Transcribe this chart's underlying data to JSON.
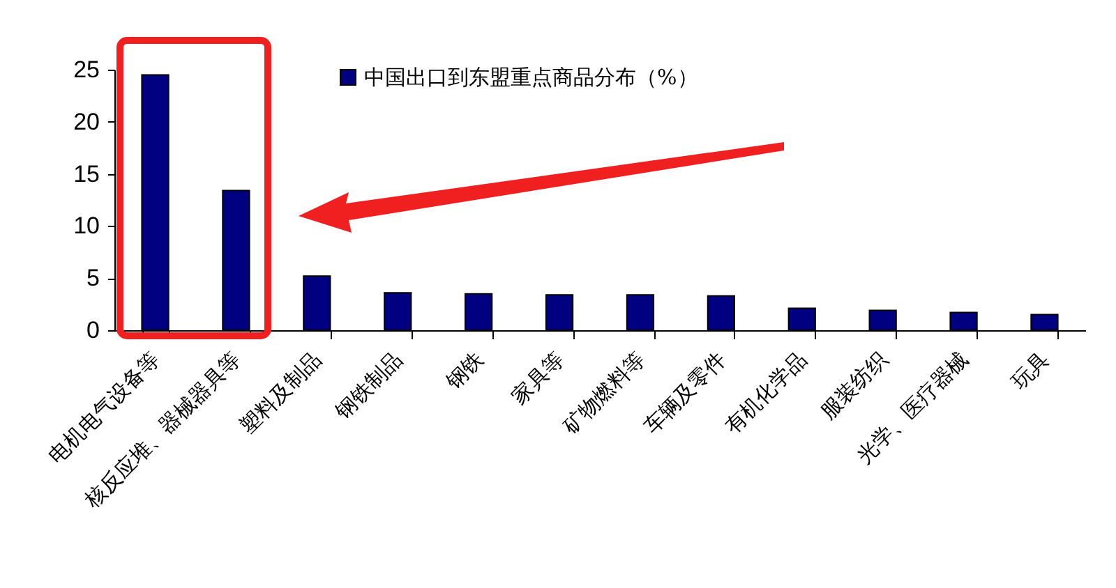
{
  "chart_data": {
    "type": "bar",
    "categories": [
      "电机电气设备等",
      "核反应堆、器械器具等",
      "塑料及制品",
      "钢铁制品",
      "钢铁",
      "家具等",
      "矿物燃料等",
      "车辆及零件",
      "有机化学品",
      "服装纺织",
      "光学、医疗器械",
      "玩具"
    ],
    "series": [
      {
        "name": "中国出口到东盟重点商品分布（%）",
        "color": "#000080",
        "values": [
          24.5,
          13.4,
          5.2,
          3.6,
          3.5,
          3.4,
          3.4,
          3.3,
          2.1,
          1.9,
          1.7,
          1.5
        ]
      }
    ],
    "ylim": [
      0,
      25
    ],
    "yticks": [
      0,
      5,
      10,
      15,
      20,
      25
    ],
    "grid": false,
    "legend": "top"
  }
}
